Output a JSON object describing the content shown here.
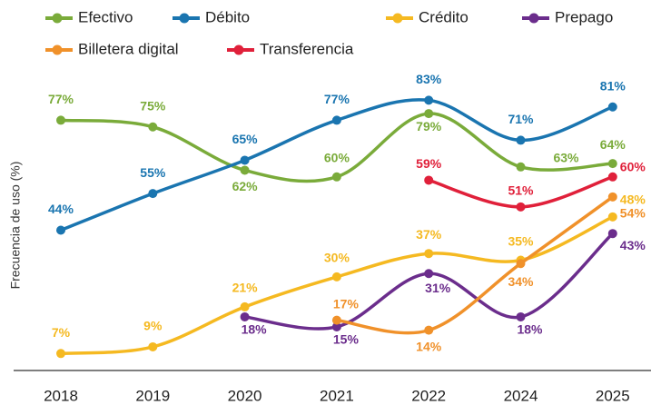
{
  "chart_data": {
    "type": "line",
    "y_label": "Frecuencia de uso (%)",
    "categories": [
      "2018",
      "2019",
      "2020",
      "2021",
      "2022",
      "2024",
      "2025"
    ],
    "series": [
      {
        "name": "Efectivo",
        "color": "#7aab3a",
        "values": [
          77,
          75,
          62,
          60,
          79,
          63,
          64
        ],
        "value_labels": [
          "77%",
          "75%",
          "62%",
          "60%",
          "79%",
          "63%",
          "64%"
        ]
      },
      {
        "name": "Débito",
        "color": "#1a75b0",
        "values": [
          44,
          55,
          65,
          77,
          83,
          71,
          81
        ],
        "value_labels": [
          "44%",
          "55%",
          "65%",
          "77%",
          "83%",
          "71%",
          "81%"
        ]
      },
      {
        "name": "Crédito",
        "color": "#f5b921",
        "values": [
          7,
          9,
          21,
          30,
          37,
          35,
          48
        ],
        "value_labels": [
          "7%",
          "9%",
          "21%",
          "30%",
          "37%",
          "35%",
          "48%"
        ]
      },
      {
        "name": "Prepago",
        "color": "#6b2d8c",
        "values": [
          null,
          null,
          18,
          15,
          31,
          18,
          43
        ],
        "value_labels": [
          null,
          null,
          "18%",
          "15%",
          "31%",
          "18%",
          "43%"
        ]
      },
      {
        "name": "Billetera digital",
        "color": "#f0912a",
        "values": [
          null,
          null,
          null,
          17,
          14,
          34,
          54
        ],
        "value_labels": [
          null,
          null,
          null,
          "17%",
          "14%",
          "34%",
          "54%"
        ]
      },
      {
        "name": "Transferencia",
        "color": "#e0203a",
        "values": [
          null,
          null,
          null,
          null,
          59,
          51,
          60
        ],
        "value_labels": [
          null,
          null,
          null,
          null,
          "59%",
          "51%",
          "60%"
        ]
      }
    ]
  }
}
